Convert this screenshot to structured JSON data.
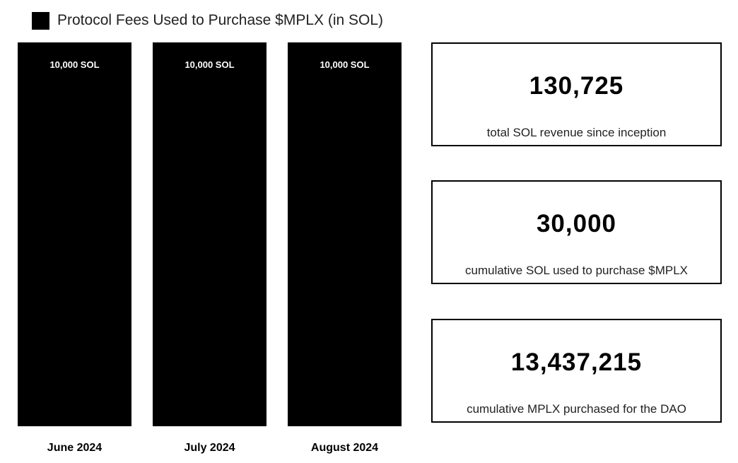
{
  "chart_data": {
    "type": "bar",
    "legend": "Protocol Fees Used to Purchase $MPLX (in SOL)",
    "legend_position": "top-left",
    "categories": [
      "June 2024",
      "July 2024",
      "August 2024"
    ],
    "series": [
      {
        "name": "Protocol Fees Used to Purchase $MPLX (in SOL)",
        "values": [
          10000,
          10000,
          10000
        ],
        "data_labels": [
          "10,000 SOL",
          "10,000 SOL",
          "10,000 SOL"
        ],
        "color": "#000000"
      }
    ],
    "ylim": [
      0,
      10000
    ],
    "grid": false
  },
  "stats": [
    {
      "value": "130,725",
      "caption": "total SOL revenue since inception"
    },
    {
      "value": "30,000",
      "caption": "cumulative SOL used to purchase $MPLX"
    },
    {
      "value": "13,437,215",
      "caption": "cumulative MPLX purchased for the DAO"
    }
  ]
}
